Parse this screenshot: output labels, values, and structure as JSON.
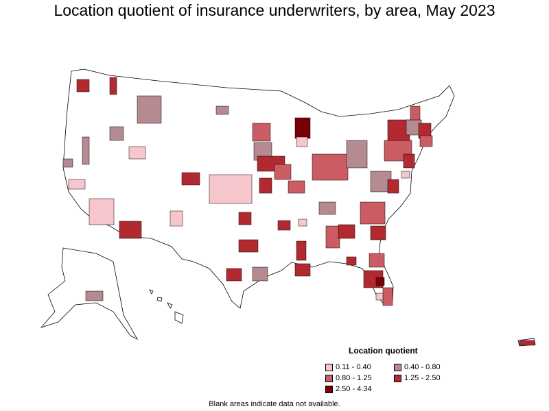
{
  "title": "Location quotient of insurance underwriters, by area, May 2023",
  "legend": {
    "title": "Location quotient",
    "items": [
      {
        "label": "0.11 - 0.40",
        "color": "#f7c6cc"
      },
      {
        "label": "0.40 - 0.80",
        "color": "#b58a90"
      },
      {
        "label": "0.80 - 1.25",
        "color": "#cc5c63"
      },
      {
        "label": "1.25 - 2.50",
        "color": "#b22a30"
      },
      {
        "label": "2.50 - 4.34",
        "color": "#7a0008"
      }
    ]
  },
  "note": "Blank areas indicate data not available."
}
